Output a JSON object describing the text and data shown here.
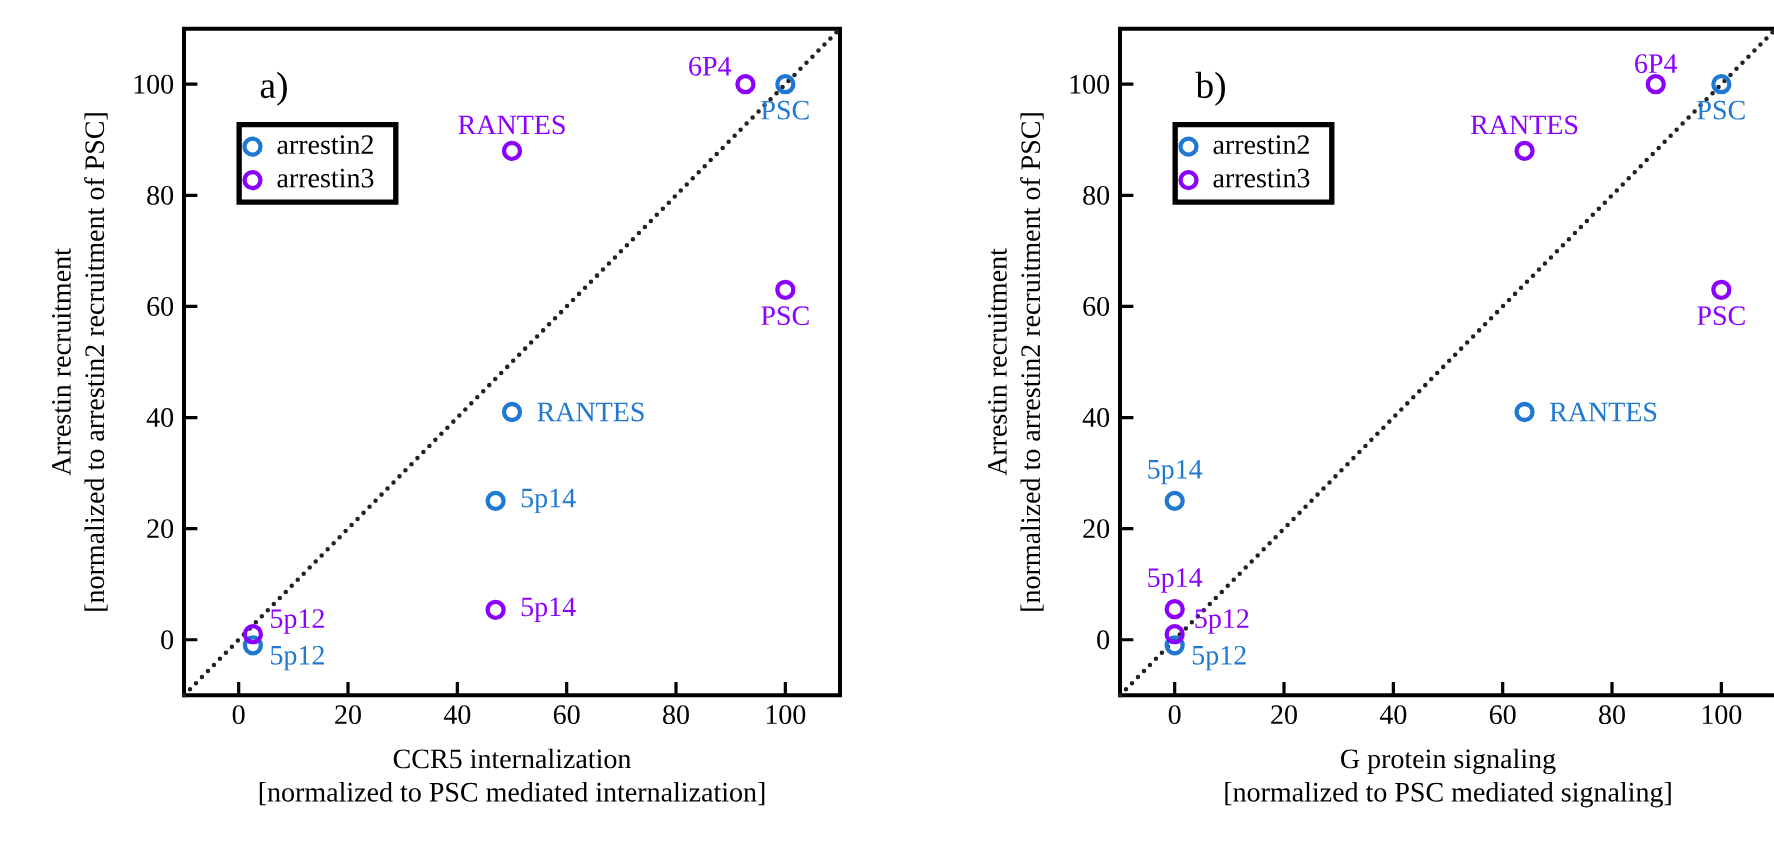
{
  "chart_data": [
    {
      "type": "scatter",
      "xlabel": "CCR5 internalization [normalized to PSC mediated internalization]",
      "ylabel": "Arrestin recruitment [normalized to arrestin2 recruitment of PSC]",
      "xlim": [
        -10,
        110
      ],
      "ylim": [
        -10,
        110
      ],
      "xticks": [
        0,
        20,
        40,
        60,
        80,
        100
      ],
      "yticks": [
        0,
        20,
        40,
        60,
        80,
        100
      ],
      "grid": false,
      "legend": "top left",
      "series": [
        {
          "name": "arrestin2",
          "color": "#1f78d1",
          "marker": "circle",
          "x": [
            2.6,
            47,
            50,
            100
          ],
          "values": [
            -1,
            25,
            41,
            100
          ]
        },
        {
          "name": "arrestin3",
          "color": "#8b00ff",
          "marker": "circle",
          "x": [
            2.6,
            47,
            50,
            92.7,
            100
          ],
          "values": [
            1,
            5.4,
            88,
            100,
            63
          ]
        },
        {
          "type": "line",
          "color": "#222222",
          "marker": "none",
          "line_style": "dotted",
          "x": [
            -10,
            110
          ],
          "values": [
            -10,
            110
          ]
        }
      ],
      "annotations": [
        "a)",
        {
          "text": "6P4",
          "x": 92.7,
          "y": 100
        },
        {
          "text": "PSC",
          "x": 100,
          "y": 100
        },
        {
          "text": "RANTES",
          "x": 50,
          "y": 88
        },
        {
          "text": "PSC",
          "x": 100,
          "y": 63
        },
        {
          "text": "RANTES",
          "x": 50,
          "y": 41
        },
        {
          "text": "5p14",
          "x": 47,
          "y": 25
        },
        {
          "text": "5p14",
          "x": 47,
          "y": 5.4
        },
        {
          "text": "5p12",
          "x": 2.6,
          "y": 1
        },
        {
          "text": "5p12",
          "x": 2.6,
          "y": -1
        }
      ]
    },
    {
      "type": "scatter",
      "xlabel": "G protein signaling [normalized to PSC mediated signaling]",
      "ylabel": "Arrestin recruitment [normalized to arrestin2 recruitment of PSC]",
      "xlim": [
        -10,
        110
      ],
      "ylim": [
        -10,
        110
      ],
      "xticks": [
        0,
        20,
        40,
        60,
        80,
        100
      ],
      "yticks": [
        0,
        20,
        40,
        60,
        80,
        100
      ],
      "grid": false,
      "legend": "top left",
      "series": [
        {
          "name": "arrestin2",
          "color": "#1f78d1",
          "marker": "circle",
          "x": [
            0,
            0,
            64,
            100
          ],
          "values": [
            -1,
            25,
            41,
            100
          ]
        },
        {
          "name": "arrestin3",
          "color": "#8b00ff",
          "marker": "circle",
          "x": [
            0,
            0,
            64,
            88,
            100
          ],
          "values": [
            1,
            5.5,
            88,
            100,
            63
          ]
        },
        {
          "type": "line",
          "color": "#222222",
          "marker": "none",
          "line_style": "dotted",
          "x": [
            -10,
            110
          ],
          "values": [
            -10,
            110
          ]
        }
      ],
      "annotations": [
        "b)",
        {
          "text": "6P4",
          "x": 88,
          "y": 100
        },
        {
          "text": "PSC",
          "x": 100,
          "y": 100
        },
        {
          "text": "RANTES",
          "x": 64,
          "y": 88
        },
        {
          "text": "PSC",
          "x": 100,
          "y": 63
        },
        {
          "text": "RANTES",
          "x": 64,
          "y": 41
        },
        {
          "text": "5p14",
          "x": 0,
          "y": 25
        },
        {
          "text": "5p14",
          "x": 0,
          "y": 5.5
        },
        {
          "text": "5p12",
          "x": 0,
          "y": 1
        },
        {
          "text": "5p12",
          "x": 0,
          "y": -1
        }
      ]
    }
  ]
}
